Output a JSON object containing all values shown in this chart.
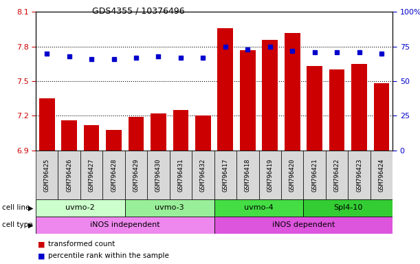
{
  "title": "GDS4355 / 10376496",
  "samples": [
    "GSM796425",
    "GSM796426",
    "GSM796427",
    "GSM796428",
    "GSM796429",
    "GSM796430",
    "GSM796431",
    "GSM796432",
    "GSM796417",
    "GSM796418",
    "GSM796419",
    "GSM796420",
    "GSM796421",
    "GSM796422",
    "GSM796423",
    "GSM796424"
  ],
  "bar_values": [
    7.35,
    7.16,
    7.12,
    7.08,
    7.19,
    7.22,
    7.25,
    7.2,
    7.96,
    7.77,
    7.86,
    7.92,
    7.63,
    7.6,
    7.65,
    7.48
  ],
  "dot_values": [
    70,
    68,
    66,
    66,
    67,
    68,
    67,
    67,
    75,
    73,
    75,
    72,
    71,
    71,
    71,
    70
  ],
  "ylim_left": [
    6.9,
    8.1
  ],
  "ylim_right": [
    0,
    100
  ],
  "yticks_left": [
    6.9,
    7.2,
    7.5,
    7.8,
    8.1
  ],
  "yticks_right": [
    0,
    25,
    50,
    75,
    100
  ],
  "ytick_labels_left": [
    "6.9",
    "7.2",
    "7.5",
    "7.8",
    "8.1"
  ],
  "ytick_labels_right": [
    "0",
    "25",
    "50",
    "75",
    "100%"
  ],
  "bar_color": "#cc0000",
  "dot_color": "#0000cc",
  "cell_line_groups": [
    {
      "label": "uvmo-2",
      "start": 0,
      "end": 3,
      "color": "#ccffcc"
    },
    {
      "label": "uvmo-3",
      "start": 4,
      "end": 7,
      "color": "#99ee99"
    },
    {
      "label": "uvmo-4",
      "start": 8,
      "end": 11,
      "color": "#44dd44"
    },
    {
      "label": "Spl4-10",
      "start": 12,
      "end": 15,
      "color": "#33cc33"
    }
  ],
  "cell_type_groups": [
    {
      "label": "iNOS independent",
      "start": 0,
      "end": 7,
      "color": "#ee88ee"
    },
    {
      "label": "iNOS dependent",
      "start": 8,
      "end": 15,
      "color": "#dd55dd"
    }
  ],
  "cell_line_label": "cell line",
  "cell_type_label": "cell type",
  "legend_bar_label": "transformed count",
  "legend_dot_label": "percentile rank within the sample",
  "background_color": "#ffffff",
  "xtick_bg_color": "#d8d8d8",
  "border_color": "#000000"
}
